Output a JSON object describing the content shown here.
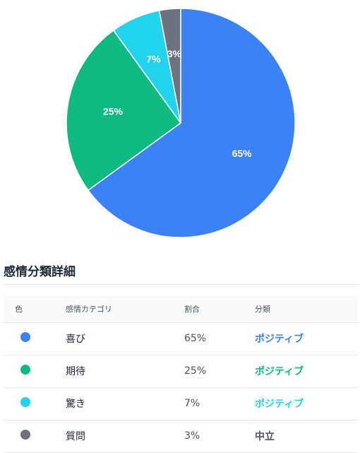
{
  "chart_data": {
    "type": "pie",
    "slices": [
      {
        "name": "喜び",
        "value": 65,
        "label": "65%",
        "color": "#3b82f6"
      },
      {
        "name": "期待",
        "value": 25,
        "label": "25%",
        "color": "#10b981"
      },
      {
        "name": "驚き",
        "value": 7,
        "label": "7%",
        "color": "#22d3ee"
      },
      {
        "name": "質問",
        "value": 3,
        "label": "3%",
        "color": "#6b7280"
      }
    ]
  },
  "section": {
    "title": "感情分類詳細"
  },
  "table": {
    "headers": {
      "color": "色",
      "category": "感情カテゴリ",
      "ratio": "割合",
      "classification": "分類"
    },
    "rows": [
      {
        "category": "喜び",
        "ratio": "65%",
        "classification": "ポジティブ",
        "dot_color": "#3b82f6",
        "class_color": "#3b82f6"
      },
      {
        "category": "期待",
        "ratio": "25%",
        "classification": "ポジティブ",
        "dot_color": "#10b981",
        "class_color": "#10b981"
      },
      {
        "category": "驚き",
        "ratio": "7%",
        "classification": "ポジティブ",
        "dot_color": "#22d3ee",
        "class_color": "#22d3ee"
      },
      {
        "category": "質問",
        "ratio": "3%",
        "classification": "中立",
        "dot_color": "#6b7280",
        "class_color": "#4b5563"
      }
    ]
  }
}
